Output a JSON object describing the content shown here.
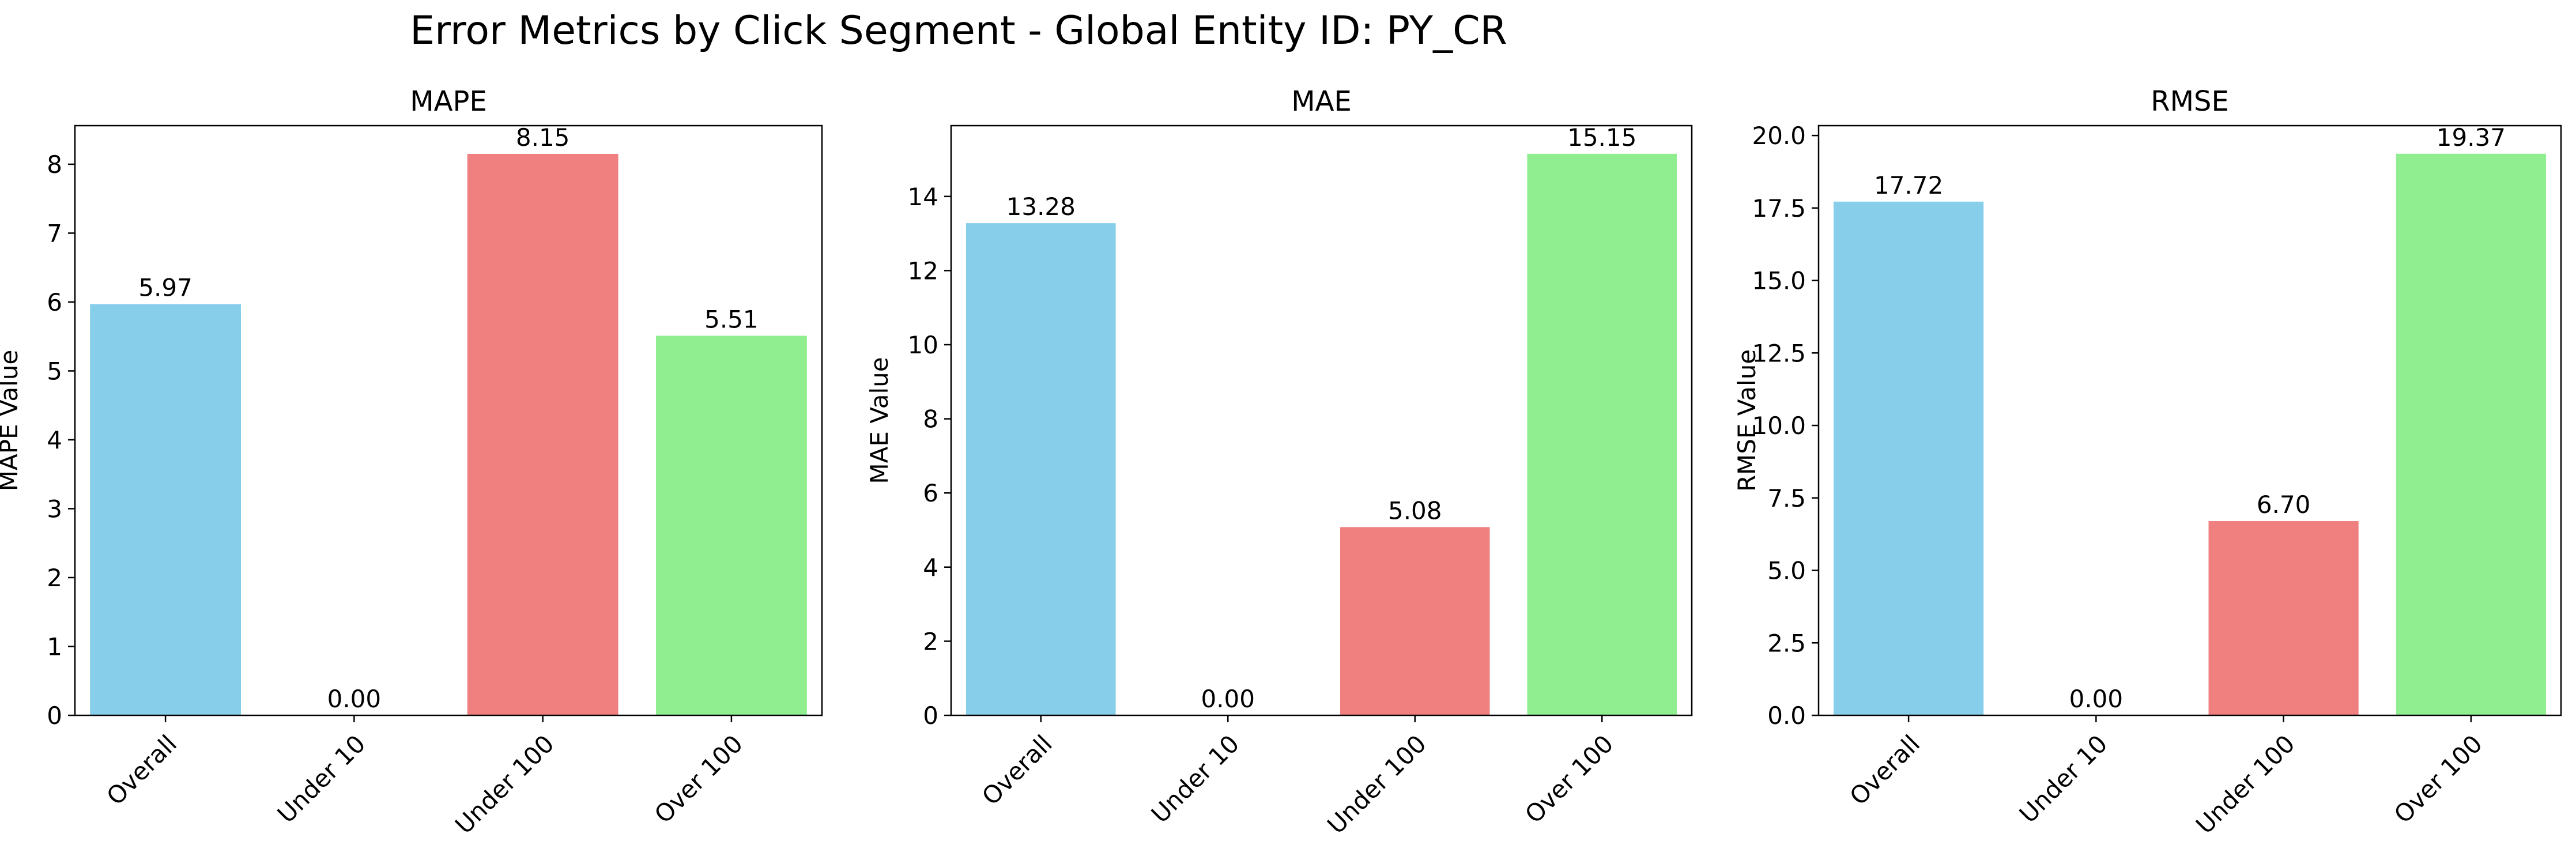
{
  "figure": {
    "suptitle": "Error Metrics by Click Segment - Global Entity ID: PY_CR"
  },
  "chart_data": [
    {
      "type": "bar",
      "title": "MAPE",
      "xlabel": "",
      "ylabel": "MAPE Value",
      "categories": [
        "Overall",
        "Under 10",
        "Under 100",
        "Over 100"
      ],
      "values": [
        5.97,
        0.0,
        8.15,
        5.51
      ],
      "value_labels": [
        "5.97",
        "0.00",
        "8.15",
        "5.51"
      ],
      "bar_colors": [
        "#87ceeb",
        "#87ceeb",
        "#f08080",
        "#90ee90"
      ],
      "ylim": [
        0,
        8.56
      ],
      "yticks": [
        0,
        1,
        2,
        3,
        4,
        5,
        6,
        7,
        8
      ],
      "ytick_labels": [
        "0",
        "1",
        "2",
        "3",
        "4",
        "5",
        "6",
        "7",
        "8"
      ],
      "grid": false,
      "legend": "none"
    },
    {
      "type": "bar",
      "title": "MAE",
      "xlabel": "",
      "ylabel": "MAE Value",
      "categories": [
        "Overall",
        "Under 10",
        "Under 100",
        "Over 100"
      ],
      "values": [
        13.28,
        0.0,
        5.08,
        15.15
      ],
      "value_labels": [
        "13.28",
        "0.00",
        "5.08",
        "15.15"
      ],
      "bar_colors": [
        "#87ceeb",
        "#87ceeb",
        "#f08080",
        "#90ee90"
      ],
      "ylim": [
        0,
        15.91
      ],
      "yticks": [
        0,
        2,
        4,
        6,
        8,
        10,
        12,
        14
      ],
      "ytick_labels": [
        "0",
        "2",
        "4",
        "6",
        "8",
        "10",
        "12",
        "14"
      ],
      "grid": false,
      "legend": "none"
    },
    {
      "type": "bar",
      "title": "RMSE",
      "xlabel": "",
      "ylabel": "RMSE Value",
      "categories": [
        "Overall",
        "Under 10",
        "Under 100",
        "Over 100"
      ],
      "values": [
        17.72,
        0.0,
        6.7,
        19.37
      ],
      "value_labels": [
        "17.72",
        "0.00",
        "6.70",
        "19.37"
      ],
      "bar_colors": [
        "#87ceeb",
        "#87ceeb",
        "#f08080",
        "#90ee90"
      ],
      "ylim": [
        0,
        20.34
      ],
      "yticks": [
        0,
        2.5,
        5,
        7.5,
        10,
        12.5,
        15,
        17.5,
        20
      ],
      "ytick_labels": [
        "0.0",
        "2.5",
        "5.0",
        "7.5",
        "10.0",
        "12.5",
        "15.0",
        "17.5",
        "20.0"
      ],
      "grid": false,
      "legend": "none"
    }
  ]
}
